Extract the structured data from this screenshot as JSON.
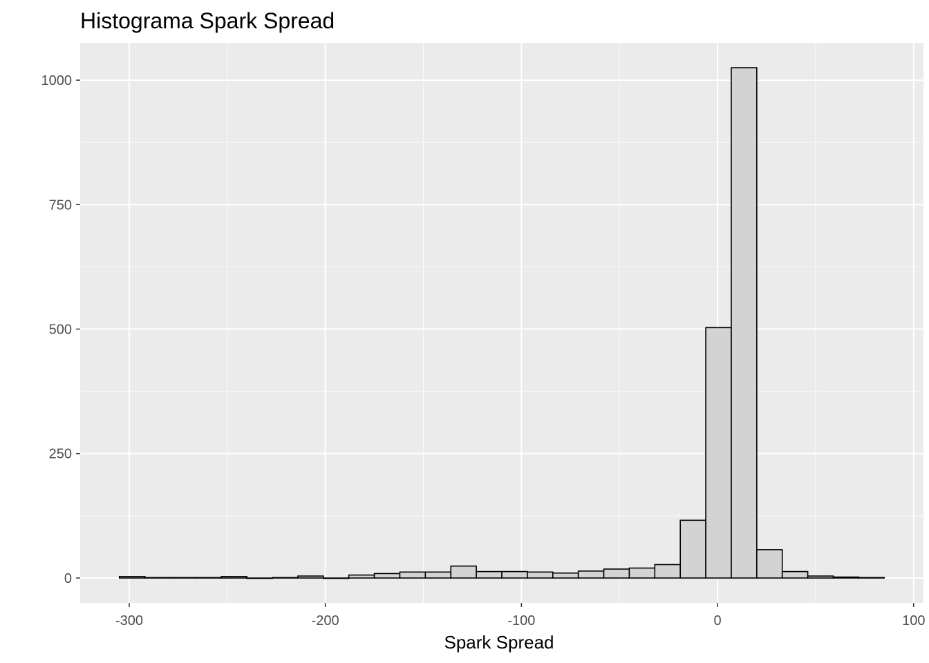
{
  "chart_data": {
    "type": "bar",
    "title": "Histograma Spark Spread",
    "xlabel": "Spark Spread",
    "ylabel": "",
    "xlim": [
      -325,
      105
    ],
    "ylim": [
      -50,
      1075
    ],
    "x_ticks": [
      -300,
      -200,
      -100,
      0,
      100
    ],
    "y_ticks": [
      0,
      250,
      500,
      750,
      1000
    ],
    "x_tick_labels": [
      "-300",
      "-200",
      "-100",
      "0",
      "100"
    ],
    "y_tick_labels": [
      "0",
      "250",
      "500",
      "750",
      "1000"
    ],
    "grid": true,
    "bins": [
      {
        "start": -305.0,
        "end": -292.0,
        "count": 3
      },
      {
        "start": -292.0,
        "end": -279.0,
        "count": 1
      },
      {
        "start": -279.0,
        "end": -266.0,
        "count": 1
      },
      {
        "start": -266.0,
        "end": -253.0,
        "count": 1
      },
      {
        "start": -253.0,
        "end": -240.0,
        "count": 3
      },
      {
        "start": -240.0,
        "end": -227.0,
        "count": 0
      },
      {
        "start": -227.0,
        "end": -214.0,
        "count": 1
      },
      {
        "start": -214.0,
        "end": -201.0,
        "count": 4
      },
      {
        "start": -201.0,
        "end": -188.0,
        "count": 0
      },
      {
        "start": -188.0,
        "end": -175.0,
        "count": 6
      },
      {
        "start": -175.0,
        "end": -162.0,
        "count": 9
      },
      {
        "start": -162.0,
        "end": -149.0,
        "count": 12
      },
      {
        "start": -149.0,
        "end": -136.0,
        "count": 12
      },
      {
        "start": -136.0,
        "end": -123.0,
        "count": 24
      },
      {
        "start": -123.0,
        "end": -110.0,
        "count": 13
      },
      {
        "start": -110.0,
        "end": -97.0,
        "count": 13
      },
      {
        "start": -97.0,
        "end": -84.0,
        "count": 12
      },
      {
        "start": -84.0,
        "end": -71.0,
        "count": 10
      },
      {
        "start": -71.0,
        "end": -58.0,
        "count": 14
      },
      {
        "start": -58.0,
        "end": -45.0,
        "count": 18
      },
      {
        "start": -45.0,
        "end": -32.0,
        "count": 20
      },
      {
        "start": -32.0,
        "end": -19.0,
        "count": 27
      },
      {
        "start": -19.0,
        "end": -6.0,
        "count": 116
      },
      {
        "start": -6.0,
        "end": 7.0,
        "count": 503
      },
      {
        "start": 7.0,
        "end": 20.0,
        "count": 1025
      },
      {
        "start": 20.0,
        "end": 33.0,
        "count": 57
      },
      {
        "start": 33.0,
        "end": 46.0,
        "count": 13
      },
      {
        "start": 46.0,
        "end": 59.0,
        "count": 4
      },
      {
        "start": 59.0,
        "end": 72.0,
        "count": 2
      },
      {
        "start": 72.0,
        "end": 85.0,
        "count": 1
      }
    ],
    "colors": {
      "panel_background": "#ebebeb",
      "major_grid": "#ffffff",
      "bar_fill": "#d3d3d3",
      "bar_outline": "#000000",
      "tick_text": "#4d4d4d",
      "tick_mark": "#333333"
    }
  }
}
